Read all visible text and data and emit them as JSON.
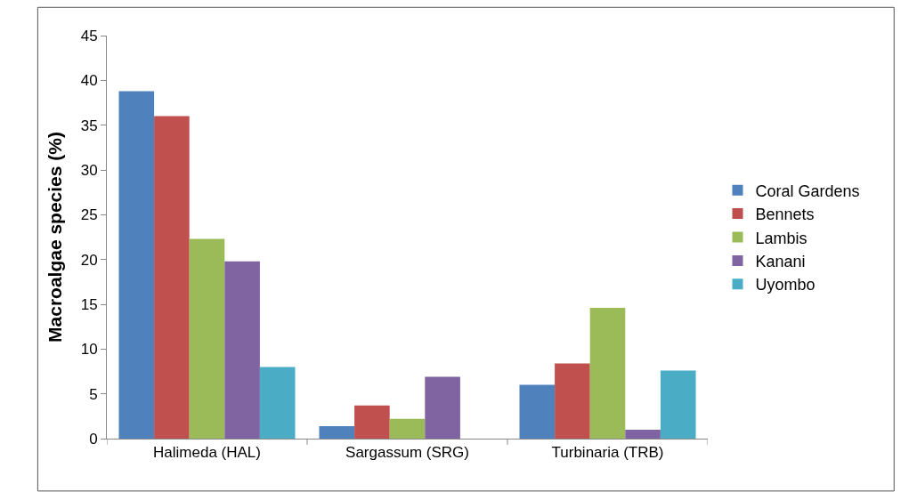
{
  "chart_data": {
    "type": "bar",
    "ylabel": "Macroalgae species (%)",
    "categories": [
      "Halimeda (HAL)",
      "Sargassum (SRG)",
      "Turbinaria (TRB)"
    ],
    "series": [
      {
        "name": "Coral Gardens",
        "color": "#4f81bd",
        "values": [
          38.8,
          1.4,
          6.0
        ]
      },
      {
        "name": "Bennets",
        "color": "#c0504d",
        "values": [
          36.0,
          3.7,
          8.4
        ]
      },
      {
        "name": "Lambis",
        "color": "#9bbb59",
        "values": [
          22.3,
          2.2,
          14.6
        ]
      },
      {
        "name": "Kanani",
        "color": "#8064a2",
        "values": [
          19.8,
          6.9,
          1.0
        ]
      },
      {
        "name": "Uyombo",
        "color": "#4bacc6",
        "values": [
          8.0,
          0,
          7.6
        ]
      }
    ],
    "ylim": [
      0,
      45
    ],
    "yticks": [
      0,
      5,
      10,
      15,
      20,
      25,
      30,
      35,
      40,
      45
    ],
    "legend": "right"
  }
}
